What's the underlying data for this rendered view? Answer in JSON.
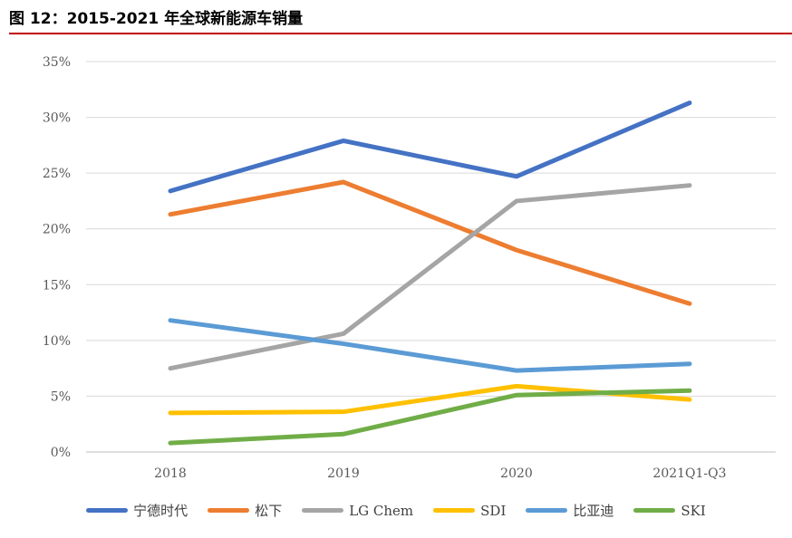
{
  "figure": {
    "title": "图 12：2015-2021 年全球新能源车销量"
  },
  "chart_data": {
    "type": "line",
    "categories": [
      "2018",
      "2019",
      "2020",
      "2021Q1-Q3"
    ],
    "ylim": [
      0,
      35
    ],
    "yticks": [
      0,
      5,
      10,
      15,
      20,
      25,
      30,
      35
    ],
    "ytick_labels": [
      "0%",
      "5%",
      "10%",
      "15%",
      "20%",
      "25%",
      "30%",
      "35%"
    ],
    "grid": true,
    "legend_position": "bottom",
    "series": [
      {
        "name": "宁德时代",
        "color": "#4472c4",
        "values": [
          23.4,
          27.9,
          24.7,
          31.3
        ]
      },
      {
        "name": "松下",
        "color": "#ed7d31",
        "values": [
          21.3,
          24.2,
          18.1,
          13.3
        ]
      },
      {
        "name": "LG Chem",
        "color": "#a5a5a5",
        "values": [
          7.5,
          10.6,
          22.5,
          23.9
        ]
      },
      {
        "name": "SDI",
        "color": "#ffc000",
        "values": [
          3.5,
          3.6,
          5.9,
          4.7
        ]
      },
      {
        "name": "比亚迪",
        "color": "#5b9bd5",
        "values": [
          11.8,
          9.7,
          7.3,
          7.9
        ]
      },
      {
        "name": "SKI",
        "color": "#70ad47",
        "values": [
          0.8,
          1.6,
          5.1,
          5.5
        ]
      }
    ]
  }
}
